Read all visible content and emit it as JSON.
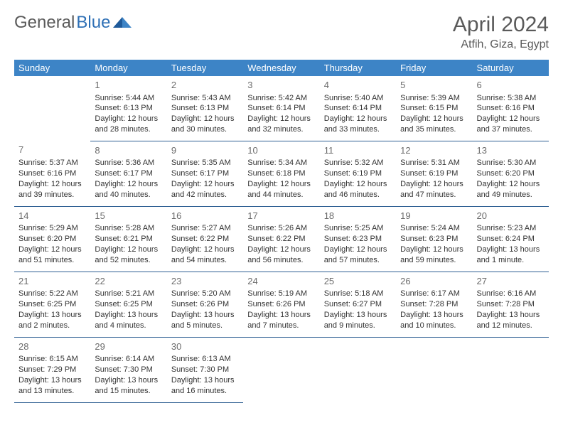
{
  "logo": {
    "text1": "General",
    "text2": "Blue"
  },
  "title": "April 2024",
  "location": "Atfih, Giza, Egypt",
  "colors": {
    "header_bg": "#3d84c6",
    "header_text": "#ffffff",
    "border": "#2d5e92",
    "title_text": "#5a5a5a",
    "body_text": "#333333",
    "daynum": "#6b6b6b",
    "logo_gray": "#5a5a5a",
    "logo_blue": "#2d6fb5"
  },
  "weekdays": [
    "Sunday",
    "Monday",
    "Tuesday",
    "Wednesday",
    "Thursday",
    "Friday",
    "Saturday"
  ],
  "weeks": [
    [
      null,
      {
        "d": "1",
        "sr": "5:44 AM",
        "ss": "6:13 PM",
        "dl": "12 hours and 28 minutes."
      },
      {
        "d": "2",
        "sr": "5:43 AM",
        "ss": "6:13 PM",
        "dl": "12 hours and 30 minutes."
      },
      {
        "d": "3",
        "sr": "5:42 AM",
        "ss": "6:14 PM",
        "dl": "12 hours and 32 minutes."
      },
      {
        "d": "4",
        "sr": "5:40 AM",
        "ss": "6:14 PM",
        "dl": "12 hours and 33 minutes."
      },
      {
        "d": "5",
        "sr": "5:39 AM",
        "ss": "6:15 PM",
        "dl": "12 hours and 35 minutes."
      },
      {
        "d": "6",
        "sr": "5:38 AM",
        "ss": "6:16 PM",
        "dl": "12 hours and 37 minutes."
      }
    ],
    [
      {
        "d": "7",
        "sr": "5:37 AM",
        "ss": "6:16 PM",
        "dl": "12 hours and 39 minutes."
      },
      {
        "d": "8",
        "sr": "5:36 AM",
        "ss": "6:17 PM",
        "dl": "12 hours and 40 minutes."
      },
      {
        "d": "9",
        "sr": "5:35 AM",
        "ss": "6:17 PM",
        "dl": "12 hours and 42 minutes."
      },
      {
        "d": "10",
        "sr": "5:34 AM",
        "ss": "6:18 PM",
        "dl": "12 hours and 44 minutes."
      },
      {
        "d": "11",
        "sr": "5:32 AM",
        "ss": "6:19 PM",
        "dl": "12 hours and 46 minutes."
      },
      {
        "d": "12",
        "sr": "5:31 AM",
        "ss": "6:19 PM",
        "dl": "12 hours and 47 minutes."
      },
      {
        "d": "13",
        "sr": "5:30 AM",
        "ss": "6:20 PM",
        "dl": "12 hours and 49 minutes."
      }
    ],
    [
      {
        "d": "14",
        "sr": "5:29 AM",
        "ss": "6:20 PM",
        "dl": "12 hours and 51 minutes."
      },
      {
        "d": "15",
        "sr": "5:28 AM",
        "ss": "6:21 PM",
        "dl": "12 hours and 52 minutes."
      },
      {
        "d": "16",
        "sr": "5:27 AM",
        "ss": "6:22 PM",
        "dl": "12 hours and 54 minutes."
      },
      {
        "d": "17",
        "sr": "5:26 AM",
        "ss": "6:22 PM",
        "dl": "12 hours and 56 minutes."
      },
      {
        "d": "18",
        "sr": "5:25 AM",
        "ss": "6:23 PM",
        "dl": "12 hours and 57 minutes."
      },
      {
        "d": "19",
        "sr": "5:24 AM",
        "ss": "6:23 PM",
        "dl": "12 hours and 59 minutes."
      },
      {
        "d": "20",
        "sr": "5:23 AM",
        "ss": "6:24 PM",
        "dl": "13 hours and 1 minute."
      }
    ],
    [
      {
        "d": "21",
        "sr": "5:22 AM",
        "ss": "6:25 PM",
        "dl": "13 hours and 2 minutes."
      },
      {
        "d": "22",
        "sr": "5:21 AM",
        "ss": "6:25 PM",
        "dl": "13 hours and 4 minutes."
      },
      {
        "d": "23",
        "sr": "5:20 AM",
        "ss": "6:26 PM",
        "dl": "13 hours and 5 minutes."
      },
      {
        "d": "24",
        "sr": "5:19 AM",
        "ss": "6:26 PM",
        "dl": "13 hours and 7 minutes."
      },
      {
        "d": "25",
        "sr": "5:18 AM",
        "ss": "6:27 PM",
        "dl": "13 hours and 9 minutes."
      },
      {
        "d": "26",
        "sr": "6:17 AM",
        "ss": "7:28 PM",
        "dl": "13 hours and 10 minutes."
      },
      {
        "d": "27",
        "sr": "6:16 AM",
        "ss": "7:28 PM",
        "dl": "13 hours and 12 minutes."
      }
    ],
    [
      {
        "d": "28",
        "sr": "6:15 AM",
        "ss": "7:29 PM",
        "dl": "13 hours and 13 minutes."
      },
      {
        "d": "29",
        "sr": "6:14 AM",
        "ss": "7:30 PM",
        "dl": "13 hours and 15 minutes."
      },
      {
        "d": "30",
        "sr": "6:13 AM",
        "ss": "7:30 PM",
        "dl": "13 hours and 16 minutes."
      },
      null,
      null,
      null,
      null
    ]
  ],
  "labels": {
    "sunrise": "Sunrise: ",
    "sunset": "Sunset: ",
    "daylight": "Daylight: "
  }
}
